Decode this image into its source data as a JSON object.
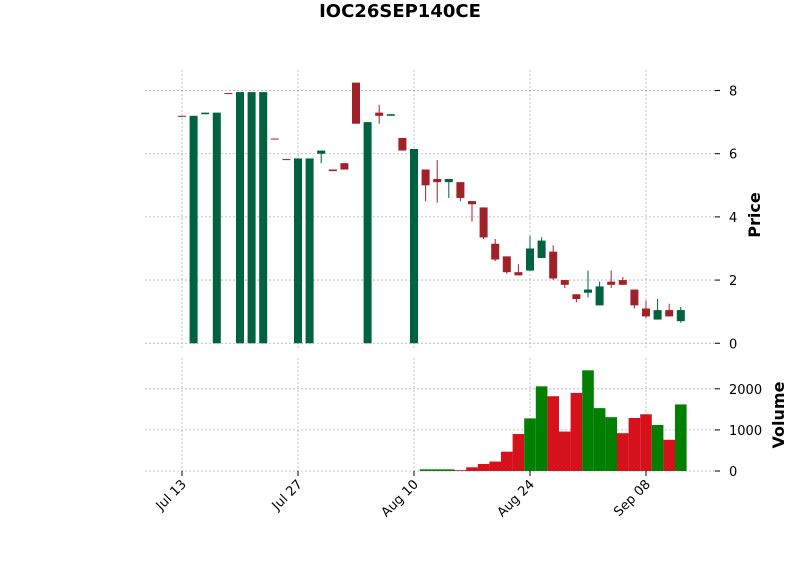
{
  "chart_data": {
    "type": "candlestick",
    "title": "IOC26SEP140CE",
    "ylabel": "Price",
    "categories": [
      "Jul 13",
      null,
      null,
      null,
      null,
      null,
      null,
      null,
      null,
      null,
      "Jul 27",
      null,
      null,
      null,
      null,
      null,
      null,
      null,
      null,
      null,
      "Aug 10",
      null,
      null,
      null,
      null,
      null,
      null,
      null,
      null,
      null,
      "Aug 24",
      null,
      null,
      null,
      null,
      null,
      null,
      null,
      null,
      null,
      "Sep 08",
      null,
      null,
      null
    ],
    "open": [
      7.2,
      0,
      7.25,
      0,
      7.92,
      0,
      0,
      0,
      6.48,
      5.83,
      0,
      0,
      6.0,
      5.5,
      5.7,
      8.25,
      0,
      7.3,
      7.2,
      6.5,
      0,
      5.5,
      5.2,
      5.1,
      5.1,
      4.5,
      4.3,
      3.15,
      2.75,
      2.25,
      2.3,
      2.7,
      2.9,
      2.0,
      1.55,
      1.6,
      1.2,
      1.95,
      2.0,
      1.7,
      1.1,
      0.75,
      1.05,
      0.7
    ],
    "high": [
      7.2,
      7.2,
      7.3,
      7.3,
      7.92,
      7.95,
      7.95,
      7.95,
      6.48,
      5.83,
      5.85,
      5.85,
      6.1,
      5.5,
      5.7,
      8.25,
      7.0,
      7.55,
      7.25,
      6.5,
      6.15,
      5.5,
      5.8,
      5.2,
      5.1,
      4.5,
      4.3,
      3.3,
      2.75,
      2.5,
      3.4,
      3.35,
      3.1,
      2.0,
      1.55,
      2.3,
      1.95,
      2.3,
      2.1,
      1.7,
      1.35,
      1.4,
      1.25,
      1.15
    ],
    "low": [
      7.18,
      0,
      7.25,
      0,
      7.9,
      0,
      0,
      0,
      6.45,
      5.8,
      0,
      0,
      5.7,
      5.45,
      5.5,
      6.95,
      0,
      6.95,
      7.2,
      6.1,
      0,
      4.5,
      4.45,
      4.6,
      4.5,
      3.85,
      3.3,
      2.6,
      2.2,
      2.15,
      2.3,
      2.7,
      2.0,
      1.75,
      1.3,
      1.45,
      1.2,
      1.75,
      1.85,
      1.1,
      0.8,
      0.75,
      0.85,
      0.65
    ],
    "close": [
      7.18,
      7.2,
      7.3,
      7.3,
      7.9,
      7.95,
      7.95,
      7.95,
      6.45,
      5.8,
      5.85,
      5.85,
      6.1,
      5.45,
      5.5,
      6.95,
      7.0,
      7.2,
      7.25,
      6.1,
      6.15,
      5.0,
      5.1,
      5.2,
      4.6,
      4.4,
      3.35,
      2.65,
      2.25,
      2.15,
      3.0,
      3.25,
      2.05,
      1.85,
      1.4,
      1.7,
      1.8,
      1.85,
      1.85,
      1.2,
      0.85,
      1.05,
      0.85,
      1.05
    ],
    "up_color": "#006340",
    "down_color": "#a02128",
    "ylim": [
      -0.15,
      8.65
    ],
    "yticks": [
      0,
      2,
      4,
      6,
      8
    ],
    "volume": {
      "ylabel": "Volume",
      "values": [
        null,
        null,
        null,
        null,
        null,
        null,
        null,
        null,
        null,
        null,
        null,
        null,
        null,
        null,
        null,
        null,
        null,
        null,
        null,
        null,
        null,
        40,
        40,
        40,
        20,
        90,
        170,
        230,
        470,
        900,
        1280,
        2060,
        1820,
        960,
        1900,
        2450,
        1530,
        1310,
        920,
        1290,
        1380,
        1120,
        760,
        1620
      ],
      "colors": [
        null,
        null,
        null,
        null,
        null,
        null,
        null,
        null,
        null,
        null,
        null,
        null,
        null,
        null,
        null,
        null,
        null,
        null,
        null,
        null,
        null,
        "#007f00",
        "#007f00",
        "#007f00",
        "#d5121b",
        "#d5121b",
        "#d5121b",
        "#d5121b",
        "#d5121b",
        "#d5121b",
        "#007f00",
        "#007f00",
        "#d5121b",
        "#d5121b",
        "#d5121b",
        "#007f00",
        "#007f00",
        "#007f00",
        "#d5121b",
        "#d5121b",
        "#d5121b",
        "#007f00",
        "#d5121b",
        "#007f00"
      ],
      "ylim": [
        0,
        2750
      ],
      "yticks": [
        0,
        1000,
        2000
      ]
    },
    "grid": true
  }
}
